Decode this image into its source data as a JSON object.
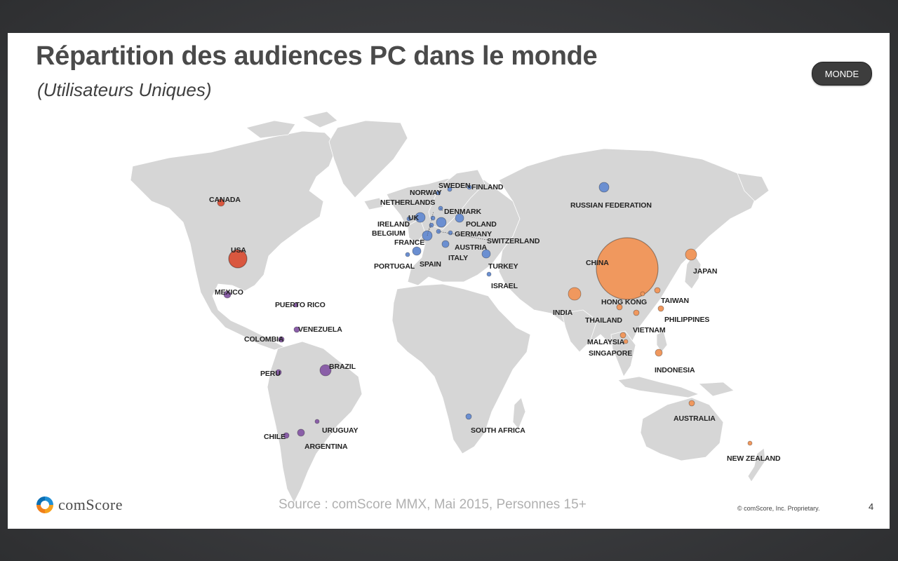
{
  "slide": {
    "title": "Répartition des audiences PC dans le monde",
    "subtitle": "(Utilisateurs Uniques)",
    "region_button": "MONDE",
    "logo_text": "comScore",
    "source": "Source : comScore MMX, Mai 2015, Personnes 15+",
    "copyright": "© comScore, Inc. Proprietary.",
    "page_number": "4"
  },
  "colors": {
    "north_america": "#d9573f",
    "latin_america": "#8a5fa8",
    "europe_mea": "#6b8fd1",
    "asia_pacific": "#f0985e",
    "land": "#d6d6d6"
  },
  "countries": [
    {
      "name": "CANADA",
      "region": "north_america"
    },
    {
      "name": "USA",
      "region": "north_america"
    },
    {
      "name": "MEXICO",
      "region": "latin_america"
    },
    {
      "name": "PUERTO RICO",
      "region": "latin_america"
    },
    {
      "name": "VENEZUELA",
      "region": "latin_america"
    },
    {
      "name": "COLOMBIA",
      "region": "latin_america"
    },
    {
      "name": "BRAZIL",
      "region": "latin_america"
    },
    {
      "name": "PERU",
      "region": "latin_america"
    },
    {
      "name": "CHILE",
      "region": "latin_america"
    },
    {
      "name": "URUGUAY",
      "region": "latin_america"
    },
    {
      "name": "ARGENTINA",
      "region": "latin_america"
    },
    {
      "name": "SWEDEN",
      "region": "europe_mea"
    },
    {
      "name": "FINLAND",
      "region": "europe_mea"
    },
    {
      "name": "NORWAY",
      "region": "europe_mea"
    },
    {
      "name": "NETHERLANDS",
      "region": "europe_mea"
    },
    {
      "name": "DENMARK",
      "region": "europe_mea"
    },
    {
      "name": "UK",
      "region": "europe_mea"
    },
    {
      "name": "IRELAND",
      "region": "europe_mea"
    },
    {
      "name": "POLAND",
      "region": "europe_mea"
    },
    {
      "name": "BELGIUM",
      "region": "europe_mea"
    },
    {
      "name": "GERMANY",
      "region": "europe_mea"
    },
    {
      "name": "SWITZERLAND",
      "region": "europe_mea"
    },
    {
      "name": "FRANCE",
      "region": "europe_mea"
    },
    {
      "name": "AUSTRIA",
      "region": "europe_mea"
    },
    {
      "name": "ITALY",
      "region": "europe_mea"
    },
    {
      "name": "PORTUGAL",
      "region": "europe_mea"
    },
    {
      "name": "SPAIN",
      "region": "europe_mea"
    },
    {
      "name": "TURKEY",
      "region": "europe_mea"
    },
    {
      "name": "ISRAEL",
      "region": "europe_mea"
    },
    {
      "name": "SOUTH AFRICA",
      "region": "europe_mea"
    },
    {
      "name": "RUSSIAN FEDERATION",
      "region": "europe_mea"
    },
    {
      "name": "CHINA",
      "region": "asia_pacific"
    },
    {
      "name": "JAPAN",
      "region": "asia_pacific"
    },
    {
      "name": "INDIA",
      "region": "asia_pacific"
    },
    {
      "name": "HONG KONG",
      "region": "asia_pacific"
    },
    {
      "name": "TAIWAN",
      "region": "asia_pacific"
    },
    {
      "name": "THAILAND",
      "region": "asia_pacific"
    },
    {
      "name": "PHILIPPINES",
      "region": "asia_pacific"
    },
    {
      "name": "VIETNAM",
      "region": "asia_pacific"
    },
    {
      "name": "MALAYSIA",
      "region": "asia_pacific"
    },
    {
      "name": "SINGAPORE",
      "region": "asia_pacific"
    },
    {
      "name": "INDONESIA",
      "region": "asia_pacific"
    },
    {
      "name": "AUSTRALIA",
      "region": "asia_pacific"
    },
    {
      "name": "NEW ZEALAND",
      "region": "asia_pacific"
    }
  ]
}
